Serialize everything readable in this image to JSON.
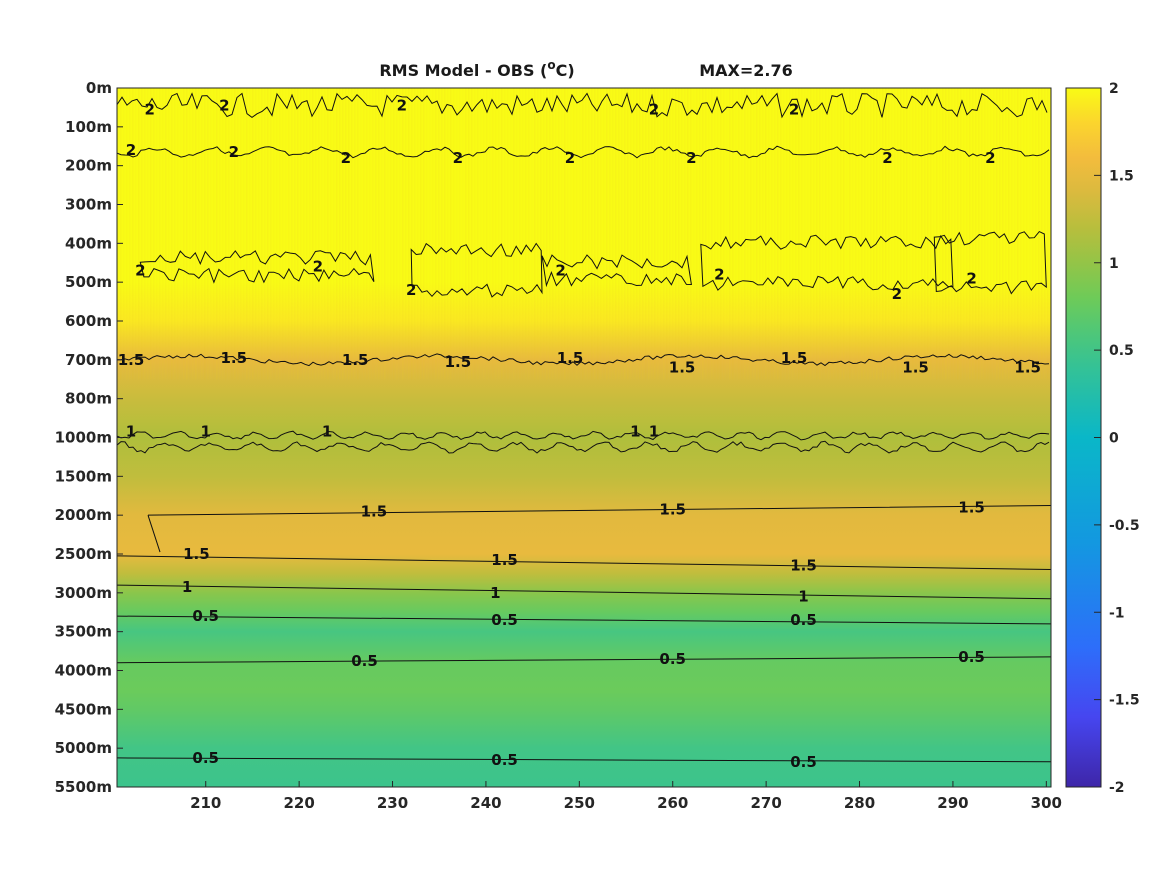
{
  "chart_data": {
    "type": "heatmap",
    "title": "RMS Model - OBS (",
    "title_superscript": "o",
    "title_unit": "C)",
    "annotation": "MAX=2.76",
    "x_ticks": [
      210,
      220,
      230,
      240,
      250,
      260,
      270,
      280,
      290,
      300
    ],
    "xlim": [
      200.5,
      300.5
    ],
    "y_ticks": [
      "0m",
      "100m",
      "200m",
      "300m",
      "400m",
      "500m",
      "600m",
      "700m",
      "800m",
      "1000m",
      "1500m",
      "2000m",
      "2500m",
      "3000m",
      "3500m",
      "4000m",
      "4500m",
      "5000m",
      "5500m"
    ],
    "y_values": [
      0,
      100,
      200,
      300,
      400,
      500,
      600,
      700,
      800,
      1000,
      1500,
      2000,
      2500,
      3000,
      3500,
      4000,
      4500,
      5000,
      5500
    ],
    "colorbar": {
      "ticks": [
        "2",
        "1.5",
        "1",
        "0.5",
        "0",
        "-0.5",
        "-1",
        "-1.5",
        "-2"
      ],
      "tick_values": [
        2,
        1.5,
        1,
        0.5,
        0,
        -0.5,
        -1,
        -1.5,
        -2
      ],
      "limits": [
        -2,
        2
      ],
      "colormap": "parula"
    },
    "depth_profile": {
      "depth_index": [
        0,
        1.5,
        2,
        3,
        4,
        5,
        6,
        7,
        8,
        9,
        10,
        11,
        12,
        12.5,
        13,
        13.5,
        14,
        14.8,
        15.5,
        16,
        17,
        18
      ],
      "value": [
        2.0,
        2.0,
        2.0,
        2.0,
        2.0,
        2.0,
        1.9,
        1.5,
        1.3,
        1.15,
        1.25,
        1.45,
        1.5,
        1.25,
        0.95,
        0.75,
        0.55,
        0.75,
        0.78,
        0.72,
        0.52,
        0.48
      ]
    },
    "contour_labels": [
      {
        "text": "2",
        "x": 204,
        "depth_index": 0.55
      },
      {
        "text": "2",
        "x": 212,
        "depth_index": 0.45
      },
      {
        "text": "2",
        "x": 231,
        "depth_index": 0.45
      },
      {
        "text": "2",
        "x": 258,
        "depth_index": 0.55
      },
      {
        "text": "2",
        "x": 273,
        "depth_index": 0.55
      },
      {
        "text": "2",
        "x": 202,
        "depth_index": 1.6
      },
      {
        "text": "2",
        "x": 213,
        "depth_index": 1.65
      },
      {
        "text": "2",
        "x": 225,
        "depth_index": 1.8
      },
      {
        "text": "2",
        "x": 237,
        "depth_index": 1.8
      },
      {
        "text": "2",
        "x": 249,
        "depth_index": 1.8
      },
      {
        "text": "2",
        "x": 262,
        "depth_index": 1.8
      },
      {
        "text": "2",
        "x": 283,
        "depth_index": 1.8
      },
      {
        "text": "2",
        "x": 294,
        "depth_index": 1.8
      },
      {
        "text": "2",
        "x": 203,
        "depth_index": 4.7
      },
      {
        "text": "2",
        "x": 222,
        "depth_index": 4.6
      },
      {
        "text": "2",
        "x": 232,
        "depth_index": 5.2
      },
      {
        "text": "2",
        "x": 248,
        "depth_index": 4.7
      },
      {
        "text": "2",
        "x": 265,
        "depth_index": 4.8
      },
      {
        "text": "2",
        "x": 284,
        "depth_index": 5.3
      },
      {
        "text": "2",
        "x": 292,
        "depth_index": 4.9
      },
      {
        "text": "1.5",
        "x": 202,
        "depth_index": 7.0
      },
      {
        "text": "1.5",
        "x": 213,
        "depth_index": 6.95
      },
      {
        "text": "1.5",
        "x": 226,
        "depth_index": 7.0
      },
      {
        "text": "1.5",
        "x": 237,
        "depth_index": 7.05
      },
      {
        "text": "1.5",
        "x": 249,
        "depth_index": 6.95
      },
      {
        "text": "1.5",
        "x": 261,
        "depth_index": 7.2
      },
      {
        "text": "1.5",
        "x": 273,
        "depth_index": 6.95
      },
      {
        "text": "1.5",
        "x": 286,
        "depth_index": 7.2
      },
      {
        "text": "1.5",
        "x": 298,
        "depth_index": 7.2
      },
      {
        "text": "1",
        "x": 202,
        "depth_index": 8.85
      },
      {
        "text": "1",
        "x": 210,
        "depth_index": 8.85
      },
      {
        "text": "1",
        "x": 223,
        "depth_index": 8.85
      },
      {
        "text": "1",
        "x": 256,
        "depth_index": 8.85
      },
      {
        "text": "1",
        "x": 258,
        "depth_index": 8.85
      },
      {
        "text": "1.5",
        "x": 228,
        "depth_index": 10.9
      },
      {
        "text": "1.5",
        "x": 260,
        "depth_index": 10.85
      },
      {
        "text": "1.5",
        "x": 292,
        "depth_index": 10.8
      },
      {
        "text": "1.5",
        "x": 209,
        "depth_index": 12.0
      },
      {
        "text": "1.5",
        "x": 242,
        "depth_index": 12.15
      },
      {
        "text": "1.5",
        "x": 274,
        "depth_index": 12.3
      },
      {
        "text": "1",
        "x": 208,
        "depth_index": 12.85
      },
      {
        "text": "1",
        "x": 241,
        "depth_index": 13.0
      },
      {
        "text": "1",
        "x": 274,
        "depth_index": 13.1
      },
      {
        "text": "0.5",
        "x": 210,
        "depth_index": 13.6
      },
      {
        "text": "0.5",
        "x": 242,
        "depth_index": 13.7
      },
      {
        "text": "0.5",
        "x": 274,
        "depth_index": 13.7
      },
      {
        "text": "0.5",
        "x": 227,
        "depth_index": 14.75
      },
      {
        "text": "0.5",
        "x": 260,
        "depth_index": 14.7
      },
      {
        "text": "0.5",
        "x": 292,
        "depth_index": 14.65
      },
      {
        "text": "0.5",
        "x": 210,
        "depth_index": 17.25
      },
      {
        "text": "0.5",
        "x": 242,
        "depth_index": 17.3
      },
      {
        "text": "0.5",
        "x": 274,
        "depth_index": 17.35
      }
    ]
  }
}
